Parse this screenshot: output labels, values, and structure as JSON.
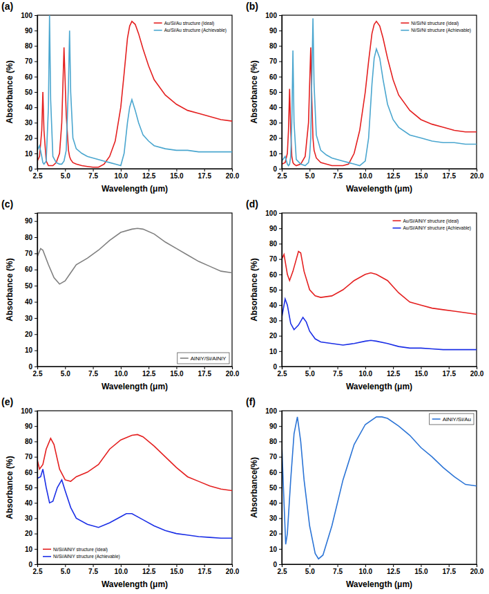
{
  "chart_data": [
    {
      "type": "line",
      "panel_label": "(a)",
      "x_label": "Wavelength (μm)",
      "y_label": "Absorbance (%)",
      "xlim": [
        2.5,
        20
      ],
      "ylim": [
        0,
        100
      ],
      "xticks": [
        2.5,
        {
          "value": 5,
          "label": "5.0"
        },
        7.5,
        {
          "value": 10,
          "label": "10.0"
        },
        12.5,
        {
          "value": 15,
          "label": "15.0"
        },
        17.5,
        {
          "value": 20,
          "label": "20.0"
        }
      ],
      "yticks": [
        0,
        10,
        20,
        30,
        40,
        50,
        60,
        70,
        80,
        90,
        100
      ],
      "legend": "upper right",
      "x": [
        2.5,
        2.7,
        2.9,
        3.0,
        3.1,
        3.3,
        3.5,
        3.6,
        3.7,
        3.9,
        4.2,
        4.5,
        4.7,
        4.9,
        5.1,
        5.3,
        5.4,
        5.5,
        5.7,
        6.0,
        6.5,
        7.0,
        7.5,
        8.0,
        8.5,
        9.0,
        9.5,
        10.0,
        10.3,
        10.6,
        10.8,
        11.0,
        11.3,
        11.6,
        12.0,
        12.5,
        13.0,
        14.0,
        15.0,
        16.0,
        17.0,
        18.0,
        19.0,
        20.0
      ],
      "series": [
        {
          "name": "Au/Si/Au structure (Ideal)",
          "color": "#e41f1f",
          "line_style": "solid",
          "values": [
            5,
            8,
            25,
            50,
            25,
            5,
            2,
            2,
            2,
            2,
            4,
            10,
            30,
            79,
            35,
            12,
            8,
            6,
            4,
            3,
            2,
            1.5,
            1,
            1,
            3,
            8,
            18,
            40,
            62,
            85,
            93,
            96,
            94,
            88,
            78,
            67,
            58,
            48,
            42,
            38,
            36,
            34,
            32,
            31
          ]
        },
        {
          "name": "Au/Si/Au structure (Achievable)",
          "color": "#4aa6cf",
          "line_style": "solid",
          "values": [
            12,
            15,
            8,
            4,
            3,
            5,
            40,
            100,
            45,
            8,
            4,
            3,
            3,
            5,
            12,
            55,
            90,
            50,
            20,
            13,
            10,
            8,
            7,
            6,
            5,
            4,
            3,
            2,
            10,
            30,
            40,
            45,
            38,
            30,
            22,
            18,
            15,
            13,
            12,
            12,
            11,
            11,
            11,
            11
          ]
        }
      ]
    },
    {
      "type": "line",
      "panel_label": "(b)",
      "x_label": "Wavelength (μm)",
      "y_label": "Absorbance (%)",
      "xlim": [
        2.5,
        20
      ],
      "ylim": [
        0,
        100
      ],
      "xticks": [
        2.5,
        {
          "value": 5,
          "label": "5.0"
        },
        7.5,
        {
          "value": 10,
          "label": "10.0"
        },
        12.5,
        {
          "value": 15,
          "label": "15.0"
        },
        17.5,
        {
          "value": 20,
          "label": "20.0"
        }
      ],
      "yticks": [
        0,
        10,
        20,
        30,
        40,
        50,
        60,
        70,
        80,
        90,
        100
      ],
      "legend": "upper right",
      "x": [
        2.5,
        2.8,
        3.0,
        3.1,
        3.2,
        3.3,
        3.4,
        3.5,
        3.6,
        3.8,
        4.2,
        4.6,
        4.9,
        5.0,
        5.1,
        5.2,
        5.3,
        5.4,
        5.6,
        6.0,
        6.5,
        7.0,
        8.0,
        8.5,
        9.0,
        9.5,
        10.0,
        10.3,
        10.6,
        10.8,
        11.0,
        11.3,
        11.6,
        12.0,
        12.5,
        13.0,
        14.0,
        15.0,
        16.0,
        17.0,
        18.0,
        19.0,
        20.0
      ],
      "series": [
        {
          "name": "Ni/Si/Ni structure (Ideal)",
          "color": "#e41f1f",
          "line_style": "solid",
          "values": [
            3,
            4,
            10,
            25,
            52,
            25,
            8,
            4,
            3,
            2,
            3,
            8,
            30,
            55,
            79,
            45,
            20,
            12,
            7,
            4,
            3,
            2,
            2,
            3,
            10,
            25,
            50,
            70,
            88,
            94,
            96,
            93,
            85,
            72,
            58,
            48,
            38,
            32,
            29,
            27,
            25,
            24,
            24
          ]
        },
        {
          "name": "Ni/Si/Ni structure (Achievable)",
          "color": "#4aa6cf",
          "line_style": "solid",
          "values": [
            5,
            8,
            3,
            2,
            3,
            8,
            30,
            77,
            30,
            6,
            3,
            2,
            4,
            8,
            20,
            60,
            98,
            55,
            22,
            12,
            9,
            7,
            5,
            4,
            3,
            2,
            5,
            20,
            55,
            72,
            78,
            72,
            58,
            42,
            32,
            27,
            22,
            20,
            18,
            17,
            17,
            16,
            16
          ]
        }
      ]
    },
    {
      "type": "line",
      "panel_label": "(c)",
      "x_label": "Wavelength (μm)",
      "y_label": "Absorbance (%)",
      "xlim": [
        2.5,
        20
      ],
      "ylim": [
        0,
        95
      ],
      "xticks": [
        2.5,
        {
          "value": 5,
          "label": "5.0"
        },
        7.5,
        {
          "value": 10,
          "label": "10.0"
        },
        12.5,
        {
          "value": 15,
          "label": "15.0"
        },
        17.5,
        {
          "value": 20,
          "label": "20.0"
        }
      ],
      "yticks": [
        0,
        10,
        20,
        30,
        40,
        50,
        60,
        70,
        80,
        90
      ],
      "legend": "lower right",
      "x": [
        2.5,
        2.8,
        3.0,
        3.5,
        4.0,
        4.5,
        5.0,
        5.5,
        6.0,
        7.0,
        8.0,
        9.0,
        10.0,
        11.0,
        11.5,
        12.0,
        13.0,
        14.0,
        15.0,
        16.0,
        17.0,
        18.0,
        19.0,
        20.0
      ],
      "series": [
        {
          "name": "AlNiY/Si/AlNiY",
          "color": "#7f7f7f",
          "line_style": "solid",
          "values": [
            68,
            73,
            72,
            63,
            55,
            51,
            53,
            58,
            63,
            67,
            72,
            78,
            83,
            85,
            85.5,
            85,
            82,
            77,
            73,
            69,
            65,
            62,
            59,
            58
          ]
        }
      ]
    },
    {
      "type": "line",
      "panel_label": "(d)",
      "x_label": "Wavelength (μm)",
      "y_label": "Absorbance (%)",
      "xlim": [
        2.5,
        20
      ],
      "ylim": [
        0,
        100
      ],
      "xticks": [
        2.5,
        {
          "value": 5,
          "label": "5.0"
        },
        7.5,
        {
          "value": 10,
          "label": "10.0"
        },
        12.5,
        {
          "value": 15,
          "label": "15.0"
        },
        17.5,
        {
          "value": 20,
          "label": "20.0"
        }
      ],
      "yticks": [
        0,
        10,
        20,
        30,
        40,
        50,
        60,
        70,
        80,
        90,
        100
      ],
      "legend": "upper right",
      "series": [
        {
          "name": "Au/Si/AlNiY structure (Ideal)",
          "color": "#e41f1f",
          "line_style": "solid",
          "x": [
            2.5,
            2.7,
            3.0,
            3.2,
            3.5,
            4.0,
            4.2,
            4.5,
            5.0,
            5.5,
            6.0,
            7.0,
            8.0,
            9.0,
            10.0,
            10.5,
            11.0,
            12.0,
            13.0,
            14.0,
            15.0,
            16.0,
            17.0,
            18.0,
            19.0,
            20.0
          ],
          "values": [
            70,
            73,
            60,
            56,
            62,
            75,
            74,
            62,
            50,
            46,
            45,
            46,
            50,
            56,
            60,
            61,
            60,
            56,
            48,
            42,
            40,
            38,
            37,
            36,
            35,
            34
          ]
        },
        {
          "name": "Au/Si/AlNiY structure (Achievable)",
          "color": "#1a2ee6",
          "line_style": "solid",
          "x": [
            2.5,
            2.8,
            3.0,
            3.3,
            3.6,
            4.0,
            4.4,
            4.7,
            5.0,
            5.5,
            6.0,
            7.0,
            8.0,
            9.0,
            10.0,
            10.5,
            11.0,
            12.0,
            13.0,
            14.0,
            15.0,
            16.0,
            17.0,
            18.0,
            19.0,
            20.0
          ],
          "values": [
            32,
            44,
            40,
            28,
            24,
            27,
            32,
            29,
            23,
            18,
            16,
            15,
            14,
            15,
            16.5,
            17,
            16.5,
            15,
            13,
            12,
            12,
            11.5,
            11,
            11,
            11,
            11
          ]
        }
      ]
    },
    {
      "type": "line",
      "panel_label": "(e)",
      "x_label": "Wavelength (μm)",
      "y_label": "Absorbance (%)",
      "xlim": [
        2.5,
        20
      ],
      "ylim": [
        0,
        100
      ],
      "xticks": [
        2.5,
        {
          "value": 5,
          "label": "5.0"
        },
        7.5,
        {
          "value": 10,
          "label": "10.0"
        },
        12.5,
        {
          "value": 15,
          "label": "15.0"
        },
        17.5,
        {
          "value": 20,
          "label": "20.0"
        }
      ],
      "yticks": [
        0,
        10,
        20,
        30,
        40,
        50,
        60,
        70,
        80,
        90,
        100
      ],
      "legend": "lower left",
      "series": [
        {
          "name": "Ni/Si/AlNiY structure (Ideal)",
          "color": "#e41f1f",
          "line_style": "solid",
          "x": [
            2.5,
            2.7,
            3.0,
            3.3,
            3.7,
            4.0,
            4.5,
            5.0,
            5.5,
            6.0,
            7.0,
            8.0,
            9.0,
            10.0,
            11.0,
            11.5,
            12.0,
            13.0,
            14.0,
            15.0,
            16.0,
            17.0,
            18.0,
            19.0,
            20.0
          ],
          "values": [
            68,
            62,
            65,
            75,
            82,
            78,
            62,
            55,
            54,
            57,
            60,
            65,
            75,
            81,
            84,
            84.5,
            83,
            77,
            70,
            63,
            57,
            54,
            51,
            49,
            48
          ]
        },
        {
          "name": "Ni/Si/AlNiY structure (Achievable)",
          "color": "#1a2ee6",
          "line_style": "solid",
          "x": [
            2.5,
            2.8,
            3.0,
            3.3,
            3.6,
            3.9,
            4.3,
            4.7,
            5.0,
            5.5,
            6.0,
            7.0,
            8.0,
            9.0,
            10.0,
            10.5,
            11.0,
            12.0,
            13.0,
            14.0,
            15.0,
            16.0,
            17.0,
            18.0,
            19.0,
            20.0
          ],
          "values": [
            56,
            57,
            62,
            50,
            40,
            41,
            50,
            55,
            48,
            37,
            30,
            26,
            24,
            27,
            31,
            33,
            33,
            29,
            25,
            22,
            20,
            19,
            18,
            17.5,
            17,
            17
          ]
        }
      ]
    },
    {
      "type": "line",
      "panel_label": "(f)",
      "x_label": "Wavelength (μm)",
      "y_label": "Absorbance(%)",
      "xlim": [
        2.5,
        20
      ],
      "ylim": [
        0,
        100
      ],
      "xticks": [
        2.5,
        {
          "value": 5,
          "label": "5.0"
        },
        7.5,
        {
          "value": 10,
          "label": "10.0"
        },
        12.5,
        {
          "value": 15,
          "label": "15.0"
        },
        17.5,
        {
          "value": 20,
          "label": "20.0"
        }
      ],
      "yticks": [
        0,
        10,
        20,
        30,
        40,
        50,
        60,
        70,
        80,
        90,
        100
      ],
      "legend": "upper right",
      "x": [
        2.5,
        2.7,
        2.85,
        3.0,
        3.3,
        3.6,
        3.9,
        4.2,
        4.5,
        5.0,
        5.5,
        5.8,
        6.2,
        7.0,
        8.0,
        9.0,
        10.0,
        11.0,
        11.5,
        12.0,
        13.0,
        14.0,
        15.0,
        16.0,
        17.0,
        18.0,
        19.0,
        20.0
      ],
      "series": [
        {
          "name": "AlNiY/Si/Au",
          "color": "#2b74d6",
          "line_style": "solid",
          "values": [
            78,
            40,
            13,
            20,
            55,
            85,
            96,
            80,
            55,
            25,
            7,
            3.5,
            6,
            25,
            55,
            78,
            91,
            96,
            96,
            95,
            90,
            84,
            76,
            70,
            63,
            57,
            52,
            51
          ]
        }
      ]
    }
  ]
}
